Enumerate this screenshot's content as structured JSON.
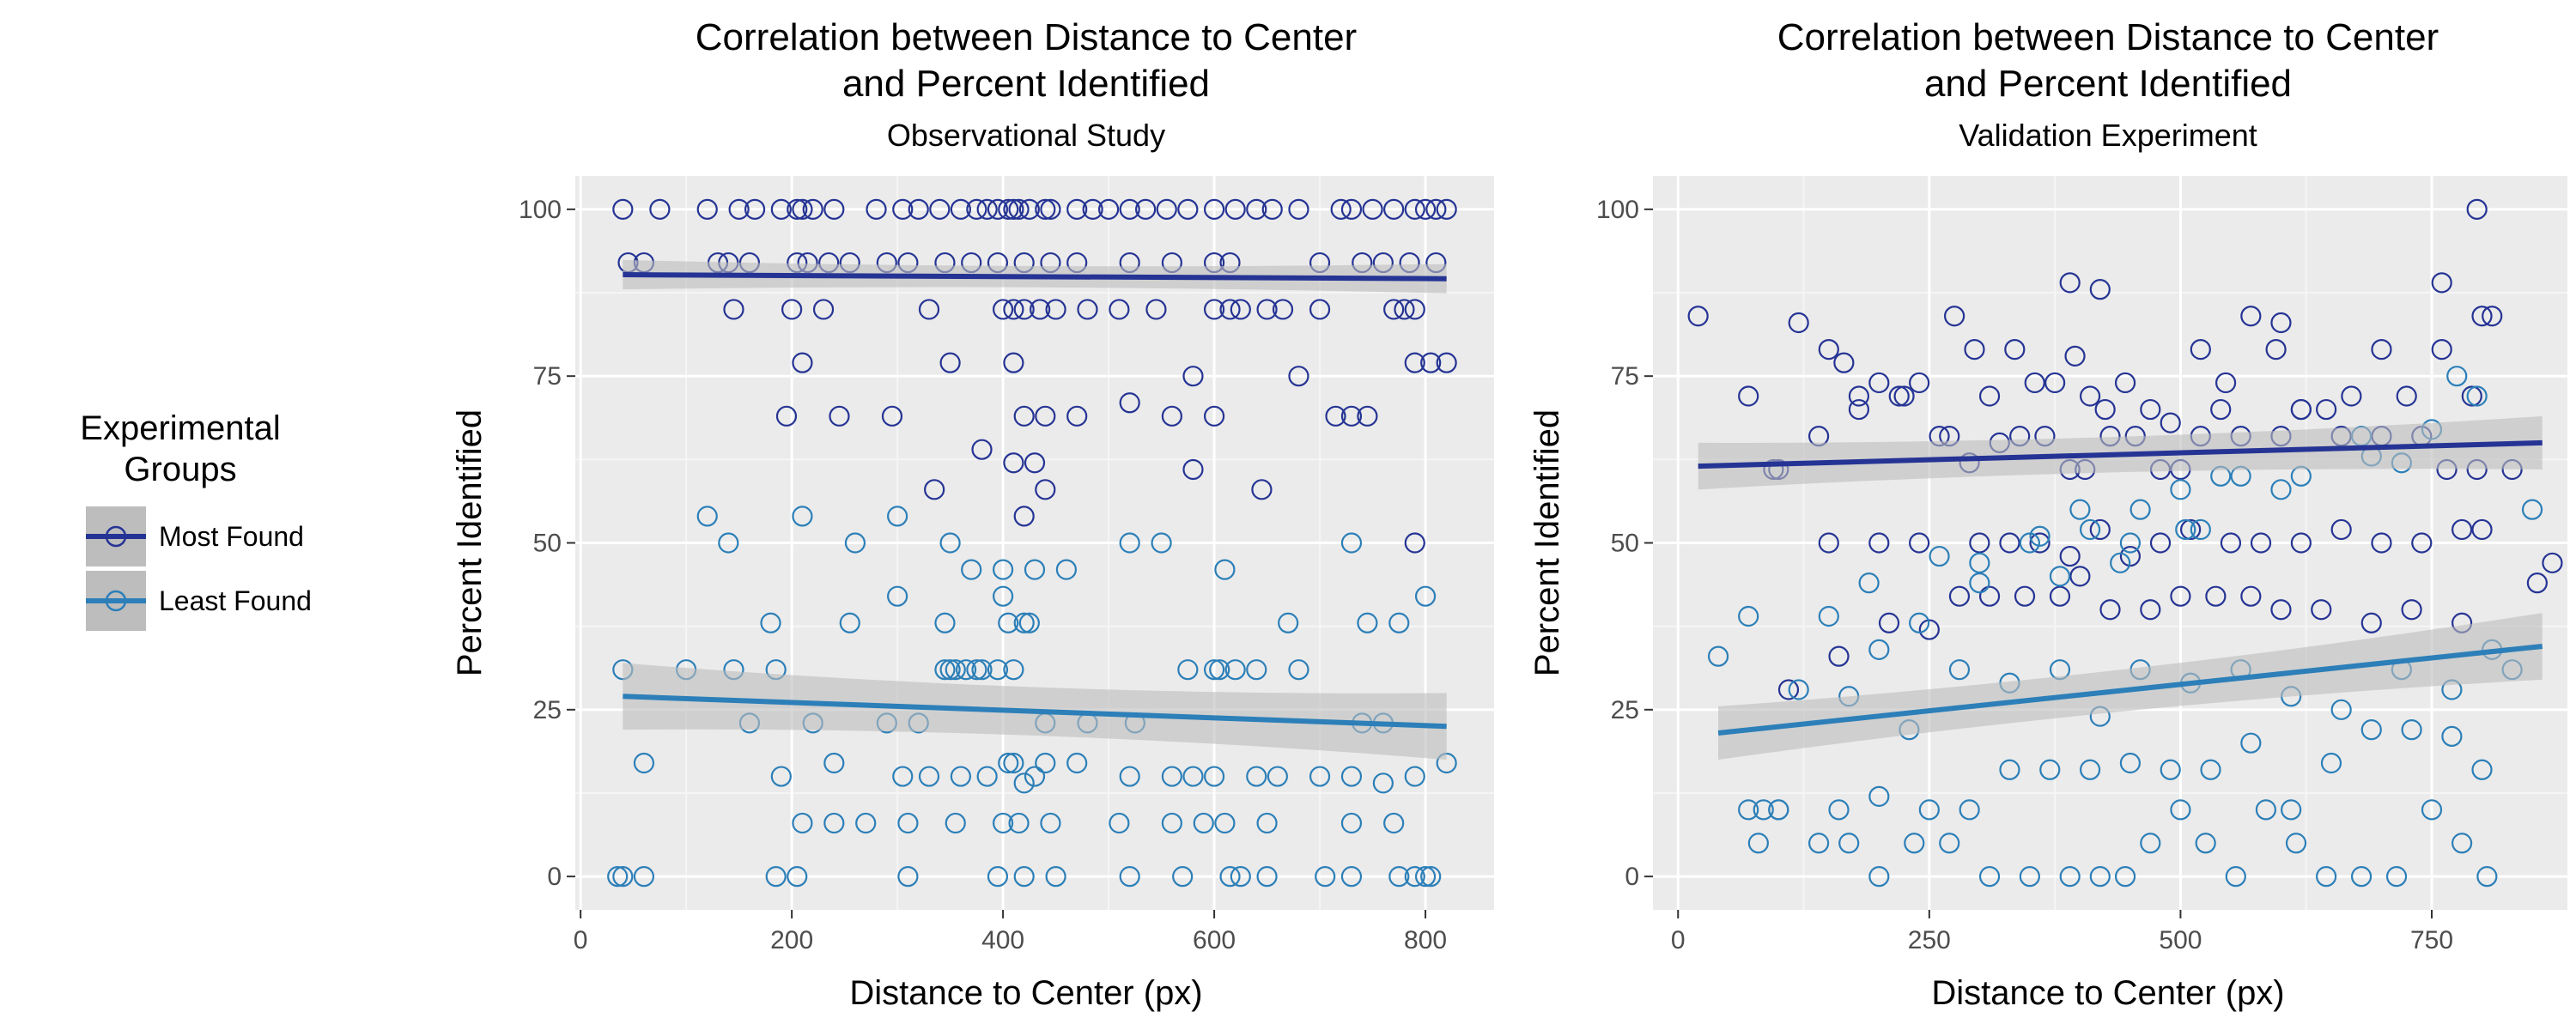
{
  "legend": {
    "title_lines": [
      "Experimental",
      "Groups"
    ],
    "entries": [
      {
        "label": "Most Found",
        "color": "#253494"
      },
      {
        "label": "Least Found",
        "color": "#2c7fb8"
      }
    ]
  },
  "colors": {
    "panel_bg": "#ebebeb",
    "grid_major": "#ffffff",
    "ribbon": "#bdbdbd",
    "most_found": "#253494",
    "least_found": "#2c7fb8"
  },
  "chart_data": [
    {
      "type": "scatter",
      "title_lines": [
        "Correlation between Distance to Center",
        "and Percent Identified"
      ],
      "subtitle": "Observational Study",
      "xlabel": "Distance to Center (px)",
      "ylabel": "Percent Identified",
      "xlim": [
        -5,
        865
      ],
      "ylim": [
        -5,
        105
      ],
      "xticks": [
        0,
        200,
        400,
        600,
        800
      ],
      "yticks": [
        0,
        25,
        50,
        75,
        100
      ],
      "grid": true,
      "series": [
        {
          "name": "Most Found",
          "color": "#253494",
          "x": [
            40,
            75,
            120,
            150,
            165,
            190,
            205,
            210,
            220,
            240,
            280,
            305,
            320,
            340,
            360,
            375,
            385,
            395,
            405,
            410,
            415,
            425,
            440,
            445,
            470,
            485,
            500,
            520,
            535,
            555,
            575,
            600,
            620,
            640,
            655,
            680,
            720,
            730,
            750,
            770,
            790,
            800,
            810,
            820,
            45,
            60,
            130,
            140,
            160,
            205,
            215,
            235,
            255,
            290,
            310,
            345,
            370,
            395,
            420,
            445,
            470,
            520,
            560,
            600,
            615,
            700,
            740,
            760,
            785,
            810,
            145,
            200,
            230,
            330,
            400,
            410,
            420,
            435,
            450,
            480,
            510,
            545,
            600,
            615,
            625,
            650,
            665,
            700,
            770,
            780,
            790,
            195,
            210,
            245,
            295,
            350,
            410,
            420,
            440,
            470,
            520,
            560,
            580,
            600,
            680,
            715,
            730,
            745,
            790,
            805,
            820,
            380,
            410,
            420,
            430,
            440,
            580,
            645,
            790,
            335
          ],
          "y": [
            100,
            100,
            100,
            100,
            100,
            100,
            100,
            100,
            100,
            100,
            100,
            100,
            100,
            100,
            100,
            100,
            100,
            100,
            100,
            100,
            100,
            100,
            100,
            100,
            100,
            100,
            100,
            100,
            100,
            100,
            100,
            100,
            100,
            100,
            100,
            100,
            100,
            100,
            100,
            100,
            100,
            100,
            100,
            100,
            92,
            92,
            92,
            92,
            92,
            92,
            92,
            92,
            92,
            92,
            92,
            92,
            92,
            92,
            92,
            92,
            92,
            92,
            92,
            92,
            92,
            92,
            92,
            92,
            92,
            92,
            85,
            85,
            85,
            85,
            85,
            85,
            85,
            85,
            85,
            85,
            85,
            85,
            85,
            85,
            85,
            85,
            85,
            85,
            85,
            85,
            85,
            69,
            77,
            69,
            69,
            77,
            77,
            69,
            69,
            69,
            71,
            69,
            75,
            69,
            75,
            69,
            69,
            69,
            77,
            77,
            77,
            64,
            62,
            54,
            62,
            58,
            61,
            58,
            50,
            58
          ]
        },
        {
          "name": "Least Found",
          "color": "#2c7fb8",
          "x": [
            35,
            60,
            185,
            205,
            40,
            310,
            395,
            420,
            450,
            520,
            570,
            615,
            625,
            650,
            705,
            730,
            775,
            790,
            800,
            805,
            60,
            190,
            210,
            240,
            270,
            305,
            330,
            360,
            385,
            405,
            410,
            420,
            430,
            440,
            470,
            520,
            560,
            580,
            600,
            640,
            660,
            700,
            730,
            760,
            790,
            820,
            120,
            140,
            210,
            260,
            300,
            350,
            370,
            400,
            430,
            460,
            520,
            550,
            610,
            670,
            730,
            745,
            775,
            800,
            145,
            160,
            185,
            220,
            290,
            320,
            345,
            380,
            410,
            440,
            480,
            525,
            575,
            605,
            620,
            680,
            740,
            760,
            240,
            310,
            355,
            400,
            415,
            445,
            510,
            560,
            590,
            610,
            650,
            730,
            770,
            40,
            100,
            255,
            345,
            350,
            355,
            365,
            375,
            395,
            405,
            420,
            425,
            600,
            640,
            400,
            300,
            180
          ],
          "y": [
            0,
            0,
            0,
            0,
            0,
            0,
            0,
            0,
            0,
            0,
            0,
            0,
            0,
            0,
            0,
            0,
            0,
            0,
            0,
            0,
            17,
            15,
            8,
            17,
            8,
            15,
            15,
            15,
            15,
            17,
            17,
            14,
            15,
            17,
            17,
            15,
            15,
            15,
            15,
            15,
            15,
            15,
            15,
            14,
            15,
            17,
            54,
            50,
            54,
            50,
            54,
            50,
            46,
            46,
            46,
            46,
            50,
            50,
            46,
            38,
            50,
            38,
            38,
            42,
            31,
            23,
            31,
            23,
            23,
            23,
            31,
            31,
            31,
            23,
            23,
            23,
            31,
            31,
            31,
            31,
            23,
            23,
            8,
            8,
            8,
            8,
            8,
            8,
            8,
            8,
            8,
            8,
            8,
            8,
            8,
            31,
            31,
            38,
            38,
            31,
            31,
            31,
            31,
            31,
            38,
            38,
            38,
            31,
            31,
            42,
            42,
            38
          ]
        }
      ],
      "trend_lines": [
        {
          "series": "Most Found",
          "x": [
            40,
            820
          ],
          "y": [
            90.2,
            89.6
          ],
          "band": [
            [
              88.0,
              92.4
            ],
            [
              87.4,
              91.8
            ]
          ]
        },
        {
          "series": "Least Found",
          "x": [
            40,
            820
          ],
          "y": [
            27.0,
            22.5
          ],
          "band": [
            [
              22.0,
              32.0
            ],
            [
              17.5,
              27.5
            ]
          ]
        }
      ]
    },
    {
      "type": "scatter",
      "title_lines": [
        "Correlation between Distance to Center",
        "and Percent Identified"
      ],
      "subtitle": "Validation Experiment",
      "xlabel": "Distance to Center (px)",
      "ylabel": "Percent Identified",
      "xlim": [
        -25,
        885
      ],
      "ylim": [
        -5,
        105
      ],
      "xticks": [
        0,
        250,
        500,
        750
      ],
      "yticks": [
        0,
        25,
        50,
        75,
        100
      ],
      "grid": true,
      "series": [
        {
          "name": "Most Found",
          "color": "#253494",
          "x": [
            20,
            70,
            100,
            120,
            150,
            165,
            180,
            200,
            225,
            240,
            260,
            275,
            295,
            310,
            335,
            355,
            375,
            395,
            410,
            425,
            445,
            470,
            490,
            520,
            545,
            570,
            595,
            620,
            645,
            670,
            700,
            725,
            760,
            790,
            800,
            810,
            95,
            140,
            180,
            220,
            270,
            290,
            320,
            340,
            365,
            390,
            405,
            430,
            455,
            480,
            500,
            520,
            540,
            560,
            600,
            620,
            660,
            700,
            740,
            765,
            795,
            830,
            150,
            200,
            240,
            300,
            330,
            360,
            390,
            420,
            450,
            480,
            510,
            550,
            580,
            620,
            660,
            700,
            740,
            780,
            800,
            110,
            160,
            210,
            250,
            280,
            310,
            345,
            380,
            400,
            430,
            470,
            500,
            535,
            570,
            600,
            640,
            690,
            730,
            780,
            855,
            870,
            390,
            420,
            795,
            600,
            760
          ],
          "y": [
            84,
            72,
            61,
            83,
            79,
            77,
            72,
            74,
            72,
            74,
            66,
            84,
            79,
            72,
            79,
            74,
            74,
            78,
            72,
            70,
            74,
            70,
            68,
            79,
            74,
            84,
            79,
            70,
            70,
            72,
            79,
            72,
            79,
            72,
            84,
            84,
            61,
            66,
            70,
            72,
            66,
            62,
            65,
            66,
            66,
            61,
            61,
            66,
            66,
            61,
            61,
            66,
            70,
            66,
            66,
            70,
            66,
            66,
            66,
            61,
            61,
            61,
            50,
            50,
            50,
            50,
            50,
            50,
            48,
            52,
            48,
            50,
            52,
            50,
            50,
            50,
            52,
            50,
            50,
            52,
            52,
            28,
            33,
            38,
            37,
            42,
            42,
            42,
            42,
            45,
            40,
            40,
            42,
            42,
            42,
            40,
            40,
            38,
            40,
            38,
            44,
            47,
            89,
            88,
            100,
            83,
            89
          ],
          "trend": true
        },
        {
          "name": "Least Found",
          "color": "#2c7fb8",
          "x": [
            40,
            70,
            85,
            100,
            140,
            170,
            200,
            235,
            270,
            310,
            350,
            390,
            420,
            445,
            470,
            500,
            525,
            555,
            585,
            615,
            645,
            680,
            715,
            750,
            780,
            805,
            830,
            80,
            100,
            160,
            200,
            250,
            290,
            330,
            370,
            410,
            450,
            490,
            530,
            570,
            610,
            650,
            690,
            730,
            770,
            800,
            70,
            120,
            170,
            230,
            280,
            330,
            380,
            420,
            460,
            510,
            560,
            610,
            660,
            720,
            770,
            810,
            850,
            150,
            190,
            260,
            300,
            360,
            410,
            460,
            505,
            560,
            620,
            690,
            750,
            795,
            200,
            240,
            300,
            350,
            400,
            450,
            500,
            540,
            600,
            680,
            720,
            775,
            380,
            440,
            520
          ],
          "y": [
            33,
            10,
            10,
            10,
            5,
            5,
            0,
            5,
            5,
            0,
            0,
            0,
            0,
            0,
            5,
            10,
            5,
            0,
            10,
            5,
            0,
            0,
            0,
            10,
            5,
            0,
            31,
            5,
            10,
            10,
            12,
            10,
            10,
            16,
            16,
            16,
            17,
            16,
            16,
            20,
            10,
            17,
            22,
            22,
            21,
            16,
            39,
            28,
            27,
            22,
            31,
            29,
            31,
            24,
            31,
            29,
            31,
            27,
            25,
            31,
            28,
            34,
            55,
            39,
            44,
            48,
            47,
            51,
            52,
            55,
            52,
            60,
            60,
            63,
            67,
            72,
            34,
            38,
            44,
            50,
            55,
            50,
            58,
            60,
            58,
            66,
            62,
            75,
            45,
            47,
            52
          ]
        }
      ],
      "trend_lines": [
        {
          "series": "Most Found",
          "x": [
            20,
            860
          ],
          "y": [
            61.5,
            65.0
          ],
          "band": [
            [
              58.0,
              65.0
            ],
            [
              61.0,
              69.0
            ]
          ]
        },
        {
          "series": "Least Found",
          "x": [
            40,
            860
          ],
          "y": [
            21.5,
            34.5
          ],
          "band": [
            [
              17.5,
              25.5
            ],
            [
              29.5,
              39.5
            ]
          ]
        }
      ]
    }
  ]
}
